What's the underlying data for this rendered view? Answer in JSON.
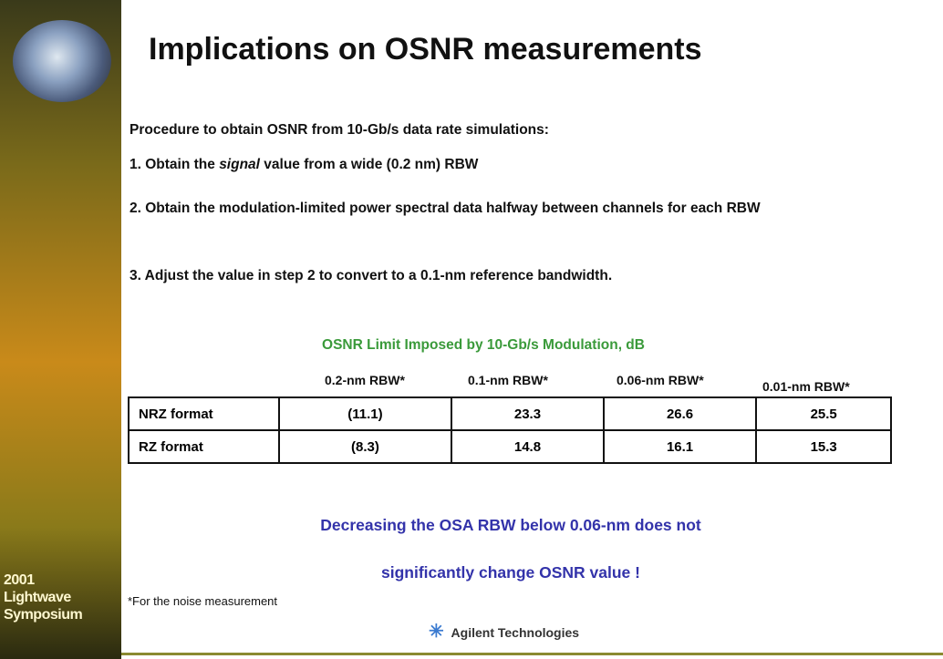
{
  "sidebar": {
    "lines": [
      "2001",
      "Lightwave",
      "Symposium"
    ]
  },
  "title": "Implications on OSNR measurements",
  "procedure": {
    "intro": "Procedure to obtain OSNR from 10-Gb/s data rate simulations:",
    "steps": [
      {
        "parts": [
          "1.  Obtain the ",
          "signal",
          " value from a wide (0.2 nm) RBW"
        ]
      },
      {
        "parts": [
          "2.  Obtain the modulation-limited power spectral data halfway between channels for each RBW"
        ]
      },
      {
        "parts": [
          "3. Adjust the value in step 2 to convert to a 0.1-nm reference bandwidth."
        ]
      }
    ]
  },
  "table": {
    "caption": "OSNR Limit Imposed by 10-Gb/s Modulation, dB",
    "columns": [
      "0.2-nm RBW*",
      "0.1-nm RBW*",
      "0.06-nm RBW*",
      "0.01-nm RBW*"
    ],
    "rows": [
      [
        "NRZ format",
        "(11.1)",
        "23.3",
        "26.6",
        "25.5"
      ],
      [
        "RZ format",
        "(8.3)",
        "14.8",
        "16.1",
        "15.3"
      ]
    ]
  },
  "conclusion": [
    "Decreasing the OSA RBW below 0.06-nm does not",
    "significantly change OSNR value !"
  ],
  "footnote": "*For the noise measurement",
  "logo": "Agilent Technologies"
}
